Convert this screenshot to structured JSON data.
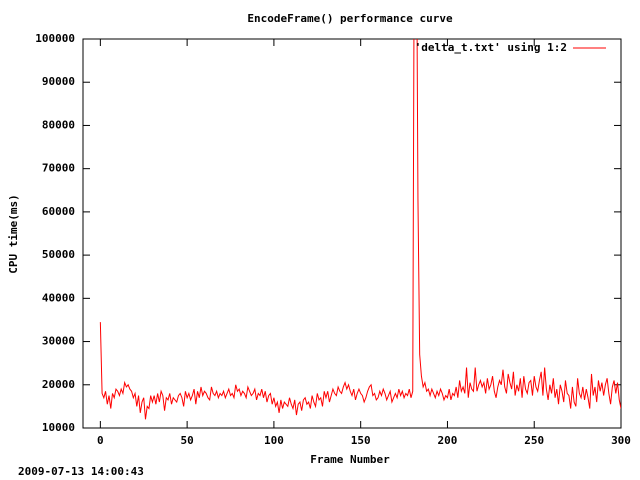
{
  "chart_data": {
    "type": "line",
    "title": "EncodeFrame() performance curve",
    "xlabel": "Frame Number",
    "ylabel": "CPU time(ms)",
    "timestamp": "2009-07-13 14:00:43",
    "xlim": [
      -10,
      300
    ],
    "xticks": [
      0,
      50,
      100,
      150,
      200,
      250,
      300
    ],
    "ylim": [
      10000,
      100000
    ],
    "yticks": [
      10000,
      20000,
      30000,
      40000,
      50000,
      60000,
      70000,
      80000,
      90000,
      100000
    ],
    "legend": "top-right",
    "x": [
      0,
      1,
      2,
      3,
      4,
      5,
      6,
      7,
      8,
      9,
      10,
      11,
      12,
      13,
      14,
      15,
      16,
      17,
      18,
      19,
      20,
      21,
      22,
      23,
      24,
      25,
      26,
      27,
      28,
      29,
      30,
      31,
      32,
      33,
      34,
      35,
      36,
      37,
      38,
      39,
      40,
      41,
      42,
      43,
      44,
      45,
      46,
      47,
      48,
      49,
      50,
      51,
      52,
      53,
      54,
      55,
      56,
      57,
      58,
      59,
      60,
      61,
      62,
      63,
      64,
      65,
      66,
      67,
      68,
      69,
      70,
      71,
      72,
      73,
      74,
      75,
      76,
      77,
      78,
      79,
      80,
      81,
      82,
      83,
      84,
      85,
      86,
      87,
      88,
      89,
      90,
      91,
      92,
      93,
      94,
      95,
      96,
      97,
      98,
      99,
      100,
      101,
      102,
      103,
      104,
      105,
      106,
      107,
      108,
      109,
      110,
      111,
      112,
      113,
      114,
      115,
      116,
      117,
      118,
      119,
      120,
      121,
      122,
      123,
      124,
      125,
      126,
      127,
      128,
      129,
      130,
      131,
      132,
      133,
      134,
      135,
      136,
      137,
      138,
      139,
      140,
      141,
      142,
      143,
      144,
      145,
      146,
      147,
      148,
      149,
      150,
      151,
      152,
      153,
      154,
      155,
      156,
      157,
      158,
      159,
      160,
      161,
      162,
      163,
      164,
      165,
      166,
      167,
      168,
      169,
      170,
      171,
      172,
      173,
      174,
      175,
      176,
      177,
      178,
      179,
      180,
      181,
      182,
      183,
      184,
      185,
      186,
      187,
      188,
      189,
      190,
      191,
      192,
      193,
      194,
      195,
      196,
      197,
      198,
      199,
      200,
      201,
      202,
      203,
      204,
      205,
      206,
      207,
      208,
      209,
      210,
      211,
      212,
      213,
      214,
      215,
      216,
      217,
      218,
      219,
      220,
      221,
      222,
      223,
      224,
      225,
      226,
      227,
      228,
      229,
      230,
      231,
      232,
      233,
      234,
      235,
      236,
      237,
      238,
      239,
      240,
      241,
      242,
      243,
      244,
      245,
      246,
      247,
      248,
      249,
      250,
      251,
      252,
      253,
      254,
      255,
      256,
      257,
      258,
      259,
      260,
      261,
      262,
      263,
      264,
      265,
      266,
      267,
      268,
      269,
      270,
      271,
      272,
      273,
      274,
      275,
      276,
      277,
      278,
      279,
      280,
      281,
      282,
      283,
      284,
      285,
      286,
      287,
      288,
      289,
      290,
      291,
      292,
      293,
      294,
      295,
      296,
      297,
      298,
      299,
      300
    ],
    "series": [
      {
        "name": "'delta_t.txt' using 1:2",
        "color": "#ff0000",
        "values": [
          34500,
          18000,
          17000,
          18500,
          15500,
          17500,
          14500,
          18000,
          17000,
          19000,
          18500,
          17500,
          19000,
          18000,
          20500,
          19500,
          20000,
          19000,
          18500,
          17000,
          18000,
          15000,
          17500,
          13500,
          16000,
          17000,
          12000,
          15000,
          14500,
          17500,
          16000,
          17500,
          15500,
          18000,
          16000,
          18500,
          17500,
          14000,
          17000,
          16500,
          18000,
          15500,
          17000,
          16500,
          16000,
          17500,
          18000,
          17000,
          15000,
          18500,
          17000,
          18000,
          16500,
          17500,
          19000,
          15500,
          18500,
          17000,
          19500,
          17500,
          18500,
          18000,
          17000,
          16500,
          19500,
          18000,
          17500,
          18500,
          17000,
          18000,
          17500,
          18500,
          17000,
          18000,
          19000,
          17500,
          18000,
          17000,
          20000,
          18500,
          19000,
          17500,
          18500,
          18000,
          17000,
          19500,
          18500,
          17500,
          18000,
          19000,
          16500,
          18000,
          17500,
          19000,
          17000,
          18500,
          16000,
          17500,
          18000,
          15500,
          17000,
          15000,
          16000,
          13500,
          16500,
          14500,
          16000,
          15500,
          15000,
          17000,
          15500,
          14500,
          16500,
          13000,
          15500,
          16000,
          14000,
          16500,
          17000,
          15500,
          16000,
          14500,
          17500,
          16000,
          15000,
          18000,
          16500,
          17000,
          15000,
          18500,
          17000,
          18500,
          16000,
          17500,
          19000,
          18000,
          17500,
          19500,
          18500,
          18000,
          19500,
          20500,
          19000,
          20000,
          18500,
          17500,
          19000,
          16500,
          18000,
          19000,
          18000,
          17500,
          16000,
          17000,
          18500,
          19500,
          20000,
          17500,
          18000,
          16500,
          17000,
          18500,
          17500,
          19000,
          18000,
          16500,
          17500,
          18500,
          16000,
          17000,
          18000,
          17000,
          19000,
          17500,
          18500,
          17000,
          18000,
          17500,
          19000,
          17000,
          18500,
          140000,
          140000,
          63000,
          27000,
          22000,
          19500,
          20500,
          18500,
          19000,
          17500,
          19000,
          18000,
          17000,
          18500,
          17500,
          19000,
          18000,
          16500,
          17500,
          17000,
          19000,
          16500,
          18000,
          17500,
          19500,
          17000,
          21000,
          18500,
          19500,
          18000,
          24000,
          17000,
          20500,
          19000,
          18500,
          24000,
          18500,
          20000,
          21000,
          19500,
          20500,
          18000,
          21500,
          19000,
          20000,
          22000,
          18500,
          17000,
          19500,
          21000,
          20000,
          23500,
          19500,
          18000,
          22500,
          20500,
          19000,
          23000,
          17500,
          20000,
          18500,
          21500,
          17000,
          22000,
          19000,
          18000,
          20500,
          21000,
          17500,
          22000,
          19500,
          18500,
          21000,
          23000,
          17500,
          24000,
          19000,
          16500,
          20000,
          18000,
          21500,
          17000,
          19000,
          15500,
          20000,
          18500,
          16000,
          21000,
          18000,
          17500,
          14500,
          19500,
          16000,
          15000,
          21500,
          18000,
          17000,
          19500,
          16500,
          19000,
          17000,
          14500,
          22500,
          17500,
          19500,
          16000,
          21000,
          18500,
          20500,
          17500,
          20000,
          21500,
          18000,
          15500,
          19500,
          21000,
          18000,
          20500,
          16500,
          14500
        ]
      }
    ]
  }
}
